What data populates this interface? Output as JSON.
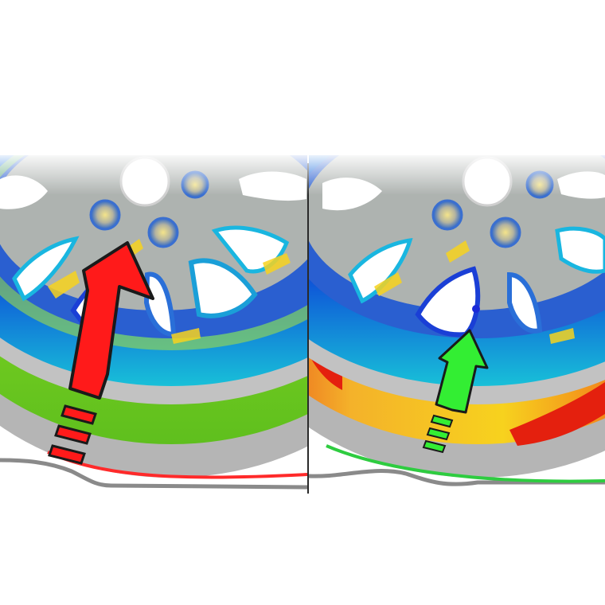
{
  "image": {
    "subject": "two-wheel-stress-simulation-comparison",
    "panels": [
      {
        "id": "left",
        "arrow_color": "#ff1a1a",
        "tire_band_color": "#7ed321",
        "contact_line_color": "#ff2a2a"
      },
      {
        "id": "right",
        "arrow_color": "#33ee33",
        "tire_band_color": "#f5a623",
        "contact_line_color": "#2ecc40"
      }
    ],
    "palette": {
      "low": "#0a2ad8",
      "mid_low": "#19b6e0",
      "mid": "#8de03a",
      "mid_high": "#f7d21e",
      "high": "#f03a12",
      "metal": "#b9b9b9",
      "divider": "#2a2a2a"
    }
  }
}
